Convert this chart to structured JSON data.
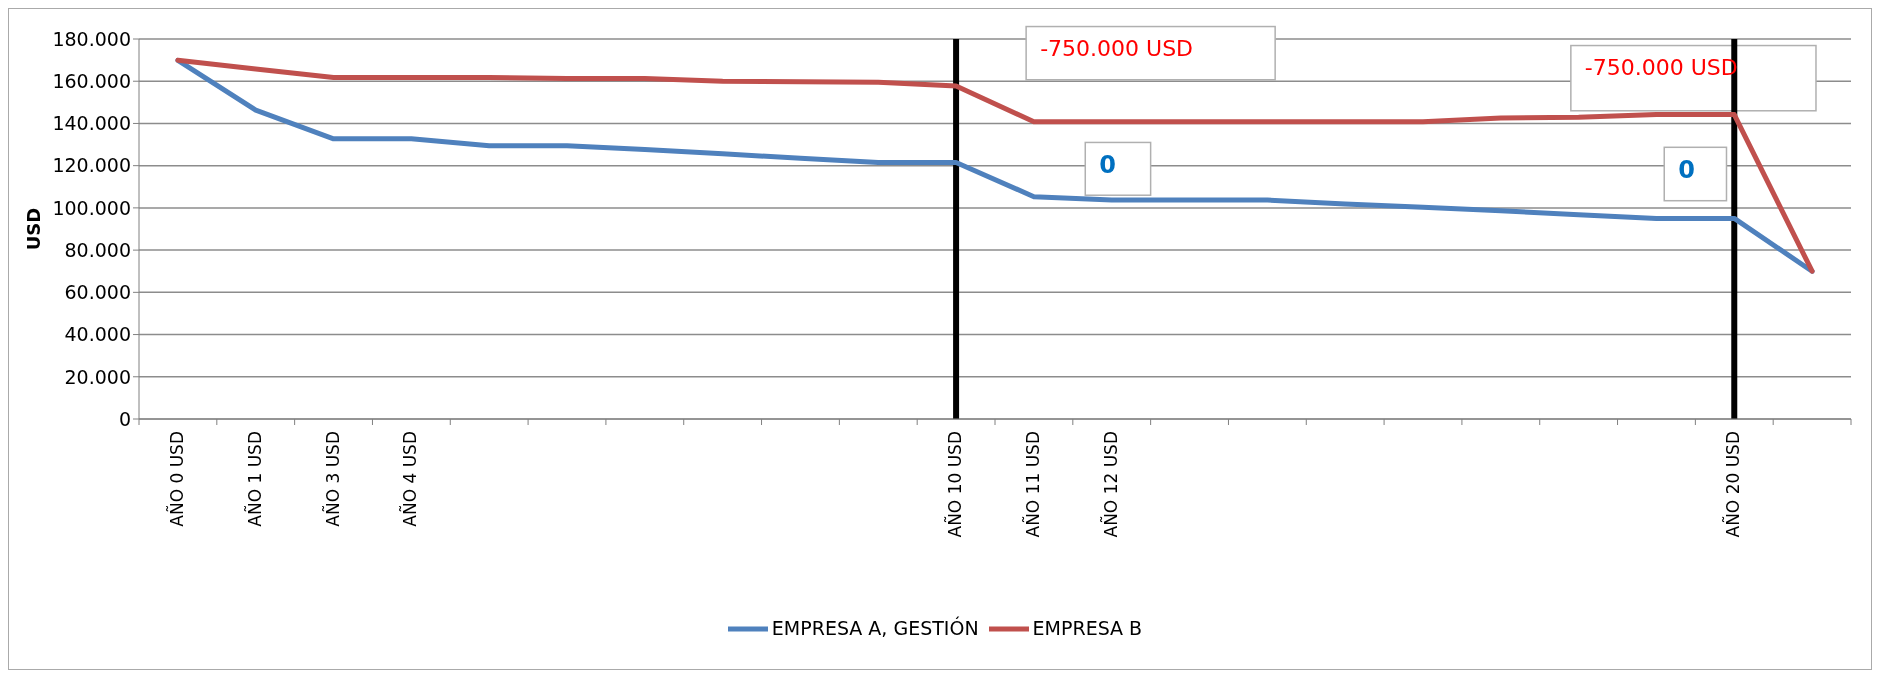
{
  "chart_data": {
    "type": "line",
    "ylabel": "USD",
    "categories": [
      "AÑO 0 USD",
      "AÑO 1 USD",
      "AÑO 3 USD",
      "AÑO 4 USD",
      null,
      null,
      null,
      null,
      null,
      null,
      "AÑO 10 USD",
      "AÑO 11 USD",
      "AÑO 12 USD",
      null,
      null,
      null,
      null,
      null,
      null,
      null,
      "AÑO 20 USD",
      null
    ],
    "series": [
      {
        "name": "EMPRESA A, GESTIÓN",
        "color": "#4f81bd",
        "values": [
          169900,
          146300,
          132700,
          132700,
          129400,
          129400,
          127600,
          125600,
          123500,
          121500,
          121500,
          105300,
          103700,
          103700,
          103700,
          101900,
          100300,
          98600,
          96800,
          95000,
          95000,
          70000
        ]
      },
      {
        "name": "EMPRESA B",
        "color": "#c0504d",
        "values": [
          169900,
          165800,
          161800,
          161800,
          161800,
          161300,
          161300,
          160000,
          159700,
          159500,
          157700,
          140800,
          140800,
          140800,
          140800,
          140800,
          140800,
          142600,
          142900,
          144200,
          144200,
          70000
        ]
      }
    ],
    "ylim": [
      0,
      180000
    ],
    "yticks": [
      {
        "value": 0,
        "label": "0"
      },
      {
        "value": 20000,
        "label": "20.000"
      },
      {
        "value": 40000,
        "label": "40.000"
      },
      {
        "value": 60000,
        "label": "60.000"
      },
      {
        "value": 80000,
        "label": "80.000"
      },
      {
        "value": 100000,
        "label": "100.000"
      },
      {
        "value": 120000,
        "label": "120.000"
      },
      {
        "value": 140000,
        "label": "140.000"
      },
      {
        "value": 160000,
        "label": "160.000"
      },
      {
        "value": 180000,
        "label": "180.000"
      }
    ],
    "grid": "y",
    "legend": "bottom",
    "marker": "none",
    "line_style": "solid",
    "ref_lines": [
      {
        "axis": "x",
        "value": "AÑO 10 USD",
        "color": "#000000"
      },
      {
        "axis": "x",
        "value": "AÑO 20 USD",
        "color": "#000000"
      }
    ],
    "annotations": [
      "-750.000 USD",
      "0",
      "-750.000 USD",
      "0"
    ]
  }
}
